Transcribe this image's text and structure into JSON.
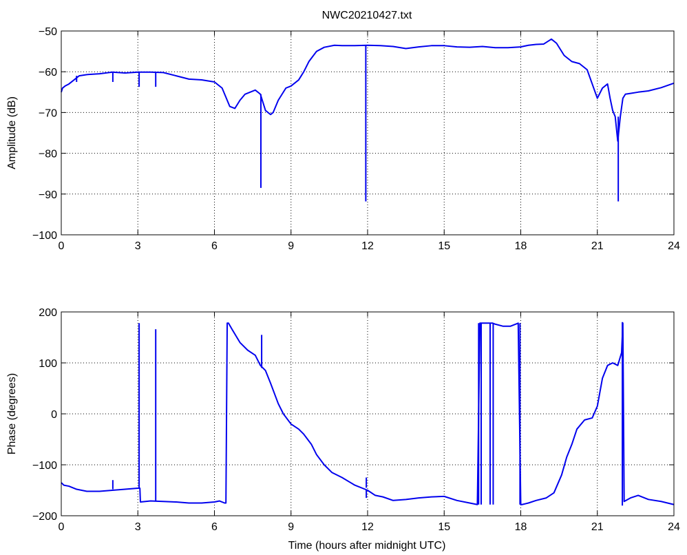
{
  "figure": {
    "title": "NWC20210427.txt",
    "line_color": "#0000ee",
    "axes_color": "#000000",
    "grid_color": "#000000"
  },
  "chart_data": [
    {
      "type": "line",
      "title": "NWC20210427.txt",
      "xlabel": "",
      "ylabel": "Amplitude (dB)",
      "xlim": [
        0,
        24
      ],
      "ylim": [
        -100,
        -50
      ],
      "xticks": [
        0,
        3,
        6,
        9,
        12,
        15,
        18,
        21,
        24
      ],
      "yticks": [
        -100,
        -90,
        -80,
        -70,
        -60,
        -50
      ],
      "xtick_labels": [
        "0",
        "3",
        "6",
        "9",
        "12",
        "15",
        "18",
        "21",
        "24"
      ],
      "ytick_labels": [
        "−100",
        "−90",
        "−80",
        "−70",
        "−60",
        "−50"
      ],
      "grid": true,
      "series": [
        {
          "color": "#0000ee",
          "x": [
            0,
            0.05,
            0.15,
            0.3,
            0.5,
            0.7,
            1.0,
            1.5,
            2.0,
            2.5,
            3.0,
            3.5,
            4.0,
            4.5,
            5.0,
            5.5,
            6.0,
            6.3,
            6.6,
            6.8,
            7.0,
            7.2,
            7.4,
            7.6,
            7.8,
            8.0,
            8.2,
            8.3,
            8.5,
            8.8,
            9.0,
            9.3,
            9.5,
            9.7,
            10.0,
            10.3,
            10.7,
            11.0,
            11.5,
            12.0,
            12.5,
            13.0,
            13.5,
            14.0,
            14.5,
            15.0,
            15.5,
            16.0,
            16.5,
            17.0,
            17.5,
            18.0,
            18.3,
            18.6,
            18.9,
            19.2,
            19.4,
            19.7,
            20.0,
            20.3,
            20.6,
            20.8,
            21.0,
            21.2,
            21.4,
            21.5,
            21.6,
            21.7,
            21.8,
            21.9,
            22.0,
            22.1,
            22.3,
            22.6,
            23.0,
            23.5,
            24.0
          ],
          "y": [
            -65,
            -64,
            -63.5,
            -63,
            -62,
            -61,
            -60.7,
            -60.5,
            -60.1,
            -60.3,
            -60.1,
            -60.1,
            -60.2,
            -61,
            -61.8,
            -62,
            -62.5,
            -64,
            -68.5,
            -69,
            -67,
            -65.5,
            -65,
            -64.5,
            -65.5,
            -69.5,
            -70.5,
            -70,
            -67,
            -64,
            -63.5,
            -62,
            -60,
            -57.5,
            -55,
            -54,
            -53.5,
            -53.6,
            -53.6,
            -53.5,
            -53.6,
            -53.8,
            -54.3,
            -53.9,
            -53.6,
            -53.6,
            -53.9,
            -54,
            -53.8,
            -54.1,
            -54.1,
            -53.9,
            -53.5,
            -53.3,
            -53.2,
            -52,
            -53,
            -56,
            -57.5,
            -58,
            -59.5,
            -63,
            -66.5,
            -64,
            -63,
            -66.5,
            -69.5,
            -71,
            -77,
            -71,
            -66.5,
            -65.5,
            -65.3,
            -65,
            -64.7,
            -63.9,
            -62.8
          ]
        }
      ],
      "spikes": [
        {
          "x": 0.6,
          "y_from": -61.0,
          "y_to": -62.5
        },
        {
          "x": 2.02,
          "y_from": -60.1,
          "y_to": -62.5
        },
        {
          "x": 3.05,
          "y_from": -60.1,
          "y_to": -63.7
        },
        {
          "x": 3.7,
          "y_from": -60.1,
          "y_to": -63.7
        },
        {
          "x": 7.82,
          "y_from": -65.5,
          "y_to": -88.5
        },
        {
          "x": 11.93,
          "y_from": -53.5,
          "y_to": -91.8
        },
        {
          "x": 21.82,
          "y_from": -71,
          "y_to": -91.8
        }
      ]
    },
    {
      "type": "line",
      "title": "",
      "xlabel": "Time (hours after midnight UTC)",
      "ylabel": "Phase (degrees)",
      "xlim": [
        0,
        24
      ],
      "ylim": [
        -200,
        200
      ],
      "xticks": [
        0,
        3,
        6,
        9,
        12,
        15,
        18,
        21,
        24
      ],
      "yticks": [
        -200,
        -100,
        0,
        100,
        200
      ],
      "xtick_labels": [
        "0",
        "3",
        "6",
        "9",
        "12",
        "15",
        "18",
        "21",
        "24"
      ],
      "ytick_labels": [
        "−200",
        "−100",
        "0",
        "100",
        "200"
      ],
      "grid": true,
      "series": [
        {
          "color": "#0000ee",
          "x": [
            0,
            0.1,
            0.3,
            0.6,
            1.0,
            1.5,
            2.0,
            2.5,
            3.0,
            3.08,
            3.1,
            3.5,
            4.0,
            4.5,
            5.0,
            5.5,
            6.0,
            6.2,
            6.4,
            6.45,
            6.5,
            6.55,
            6.7,
            7.0,
            7.3,
            7.6,
            7.8,
            8.0,
            8.2,
            8.5,
            8.7,
            9.0,
            9.3,
            9.5,
            9.8,
            10.0,
            10.3,
            10.6,
            11.0,
            11.5,
            12.0,
            12.3,
            12.6,
            13.0,
            13.5,
            14.0,
            14.5,
            15.0,
            15.5,
            16.0,
            16.3,
            16.4,
            16.5,
            16.7,
            16.8,
            16.9,
            17.0,
            17.3,
            17.6,
            17.9,
            18.0,
            18.05,
            18.3,
            18.6,
            19.0,
            19.3,
            19.6,
            19.8,
            20.0,
            20.2,
            20.5,
            20.8,
            21.0,
            21.2,
            21.4,
            21.6,
            21.8,
            21.95,
            22.0,
            22.05,
            22.3,
            22.6,
            23.0,
            23.5,
            24.0
          ],
          "y": [
            -135,
            -140,
            -142,
            -148,
            -152,
            -152,
            -150,
            -148,
            -146,
            -146,
            -173,
            -171,
            -172,
            -173,
            -175,
            -175,
            -173,
            -171,
            -175,
            -175,
            178,
            178,
            165,
            140,
            125,
            115,
            95,
            85,
            60,
            20,
            0,
            -20,
            -30,
            -40,
            -60,
            -80,
            -100,
            -115,
            -125,
            -140,
            -150,
            -160,
            -163,
            -170,
            -168,
            -165,
            -163,
            -162,
            -170,
            -175,
            -178,
            178,
            178,
            178,
            178,
            178,
            176,
            172,
            172,
            178,
            -178,
            -178,
            -175,
            -170,
            -165,
            -155,
            -120,
            -85,
            -60,
            -30,
            -12,
            -8,
            15,
            70,
            95,
            100,
            95,
            120,
            178,
            -172,
            -165,
            -160,
            -168,
            -172,
            -178
          ]
        }
      ],
      "spikes": [
        {
          "x": 2.02,
          "y_from": -148,
          "y_to": -130
        },
        {
          "x": 3.05,
          "y_from": -146,
          "y_to": 178
        },
        {
          "x": 3.7,
          "y_from": -171,
          "y_to": 166
        },
        {
          "x": 7.85,
          "y_from": 90,
          "y_to": 155
        },
        {
          "x": 11.95,
          "y_from": -145,
          "y_to": -125
        },
        {
          "x": 11.95,
          "y_from": -150,
          "y_to": -165
        },
        {
          "x": 16.35,
          "y_from": -178,
          "y_to": 178
        },
        {
          "x": 16.45,
          "y_from": -178,
          "y_to": 178
        },
        {
          "x": 16.8,
          "y_from": -178,
          "y_to": 178
        },
        {
          "x": 16.92,
          "y_from": -178,
          "y_to": 178
        },
        {
          "x": 17.97,
          "y_from": -178,
          "y_to": 178
        },
        {
          "x": 21.98,
          "y_from": -180,
          "y_to": 180
        }
      ]
    }
  ]
}
